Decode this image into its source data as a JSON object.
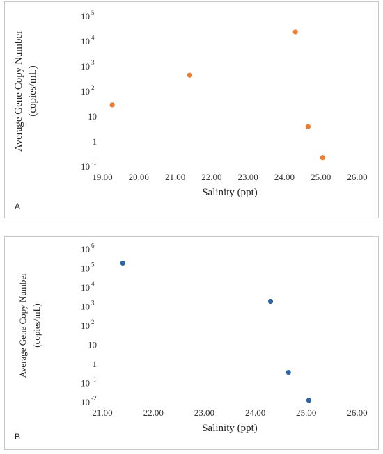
{
  "chart_data": [
    {
      "type": "scatter",
      "panel_label": "A",
      "xlabel": "Salinity (ppt)",
      "ylabel_line1": "Average Gene Copy Number",
      "ylabel_line2": "(copies/mL)",
      "x_ticks": [
        "19.00",
        "20.00",
        "21.00",
        "22.00",
        "23.00",
        "24.00",
        "25.00",
        "26.00"
      ],
      "xlim": [
        19,
        26
      ],
      "y_scale": "log",
      "y_ticks": [
        {
          "base": "10",
          "exp": "-1"
        },
        {
          "base": "1",
          "exp": ""
        },
        {
          "base": "10",
          "exp": ""
        },
        {
          "base": "10",
          "exp": "2"
        },
        {
          "base": "10",
          "exp": "3"
        },
        {
          "base": "10",
          "exp": "4"
        },
        {
          "base": "10",
          "exp": "5"
        }
      ],
      "ylim": [
        0.1,
        100000
      ],
      "grid": false,
      "marker_color": "#ED7D31",
      "series": [
        {
          "x": [
            19.27,
            21.4,
            24.3,
            24.65,
            25.05
          ],
          "y": [
            28,
            430,
            23000,
            3.8,
            0.22
          ]
        }
      ]
    },
    {
      "type": "scatter",
      "panel_label": "B",
      "xlabel": "Salinity (ppt)",
      "ylabel_line1": "Average Gene Copy Number",
      "ylabel_line2": "(copies/mL)",
      "x_ticks": [
        "21.00",
        "22.00",
        "23.00",
        "24.00",
        "25.00",
        "26.00"
      ],
      "xlim": [
        21,
        26
      ],
      "y_scale": "log",
      "y_ticks": [
        {
          "base": "10",
          "exp": "-2"
        },
        {
          "base": "10",
          "exp": "-1"
        },
        {
          "base": "1",
          "exp": ""
        },
        {
          "base": "10",
          "exp": ""
        },
        {
          "base": "10",
          "exp": "2"
        },
        {
          "base": "10",
          "exp": "3"
        },
        {
          "base": "10",
          "exp": "4"
        },
        {
          "base": "10",
          "exp": "5"
        },
        {
          "base": "10",
          "exp": "6"
        }
      ],
      "ylim": [
        0.01,
        1000000
      ],
      "grid": false,
      "marker_color": "#2E67A7",
      "series": [
        {
          "x": [
            21.4,
            24.3,
            24.65,
            25.05
          ],
          "y": [
            180000,
            1800,
            0.35,
            0.012
          ]
        }
      ]
    }
  ]
}
